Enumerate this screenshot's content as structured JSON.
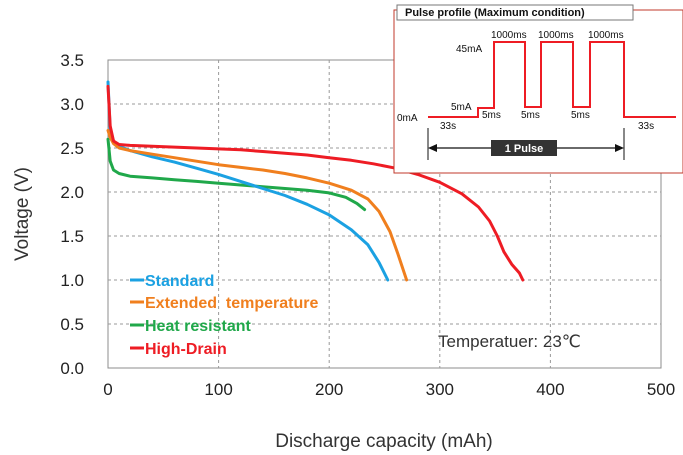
{
  "chart_data": {
    "type": "line",
    "title": "",
    "xlabel": "Discharge capacity (mAh)",
    "ylabel": "Voltage (V)",
    "xlim": [
      0,
      500
    ],
    "ylim": [
      0.0,
      3.5
    ],
    "xticks": [
      "0",
      "100",
      "200",
      "300",
      "400",
      "500"
    ],
    "yticks": [
      "0.0",
      "0.5",
      "1.0",
      "1.5",
      "2.0",
      "2.5",
      "3.0",
      "3.5"
    ],
    "grid": true,
    "legend_position": "bottom-left",
    "annotation": "Temperatuer: 23℃",
    "series": [
      {
        "name": "Standard",
        "color": "#1ba1e2",
        "x": [
          0,
          2,
          5,
          10,
          20,
          40,
          60,
          80,
          100,
          120,
          140,
          160,
          180,
          200,
          220,
          235,
          245,
          253
        ],
        "y": [
          3.25,
          2.7,
          2.58,
          2.52,
          2.47,
          2.4,
          2.34,
          2.27,
          2.2,
          2.12,
          2.04,
          1.96,
          1.86,
          1.74,
          1.57,
          1.4,
          1.2,
          1.0
        ]
      },
      {
        "name": "Extended  temperature",
        "color": "#f07f1e",
        "x": [
          0,
          2,
          5,
          10,
          20,
          40,
          60,
          80,
          100,
          120,
          140,
          160,
          180,
          200,
          220,
          235,
          245,
          255,
          262,
          270
        ],
        "y": [
          2.7,
          2.62,
          2.55,
          2.5,
          2.47,
          2.43,
          2.39,
          2.35,
          2.31,
          2.28,
          2.25,
          2.21,
          2.16,
          2.1,
          2.02,
          1.92,
          1.78,
          1.55,
          1.3,
          1.0
        ]
      },
      {
        "name": "Heat resistant",
        "color": "#20a84a",
        "x": [
          0,
          2,
          5,
          10,
          20,
          40,
          60,
          80,
          100,
          120,
          140,
          160,
          180,
          200,
          215,
          225,
          232
        ],
        "y": [
          2.6,
          2.35,
          2.25,
          2.21,
          2.18,
          2.16,
          2.14,
          2.12,
          2.1,
          2.08,
          2.06,
          2.04,
          2.02,
          1.99,
          1.94,
          1.87,
          1.8
        ]
      },
      {
        "name": "High-Drain",
        "color": "#ee1c24",
        "x": [
          0,
          2,
          5,
          10,
          20,
          40,
          60,
          80,
          100,
          120,
          140,
          160,
          180,
          200,
          220,
          240,
          260,
          280,
          300,
          320,
          335,
          345,
          352,
          358,
          365,
          372,
          375
        ],
        "y": [
          3.2,
          2.75,
          2.58,
          2.54,
          2.53,
          2.52,
          2.51,
          2.5,
          2.49,
          2.48,
          2.46,
          2.44,
          2.42,
          2.39,
          2.36,
          2.32,
          2.27,
          2.2,
          2.11,
          1.98,
          1.83,
          1.67,
          1.5,
          1.32,
          1.18,
          1.08,
          1.0
        ]
      }
    ],
    "inset": {
      "title": "Pulse profile (Maximum condition)",
      "level_labels": [
        "0mA",
        "5mA",
        "45mA"
      ],
      "time_labels": [
        "33s",
        "5ms",
        "1000ms",
        "5ms",
        "1000ms",
        "5ms",
        "1000ms",
        "33s"
      ],
      "pulse_label": "1 Pulse",
      "line_color": "#ee1c24"
    }
  }
}
